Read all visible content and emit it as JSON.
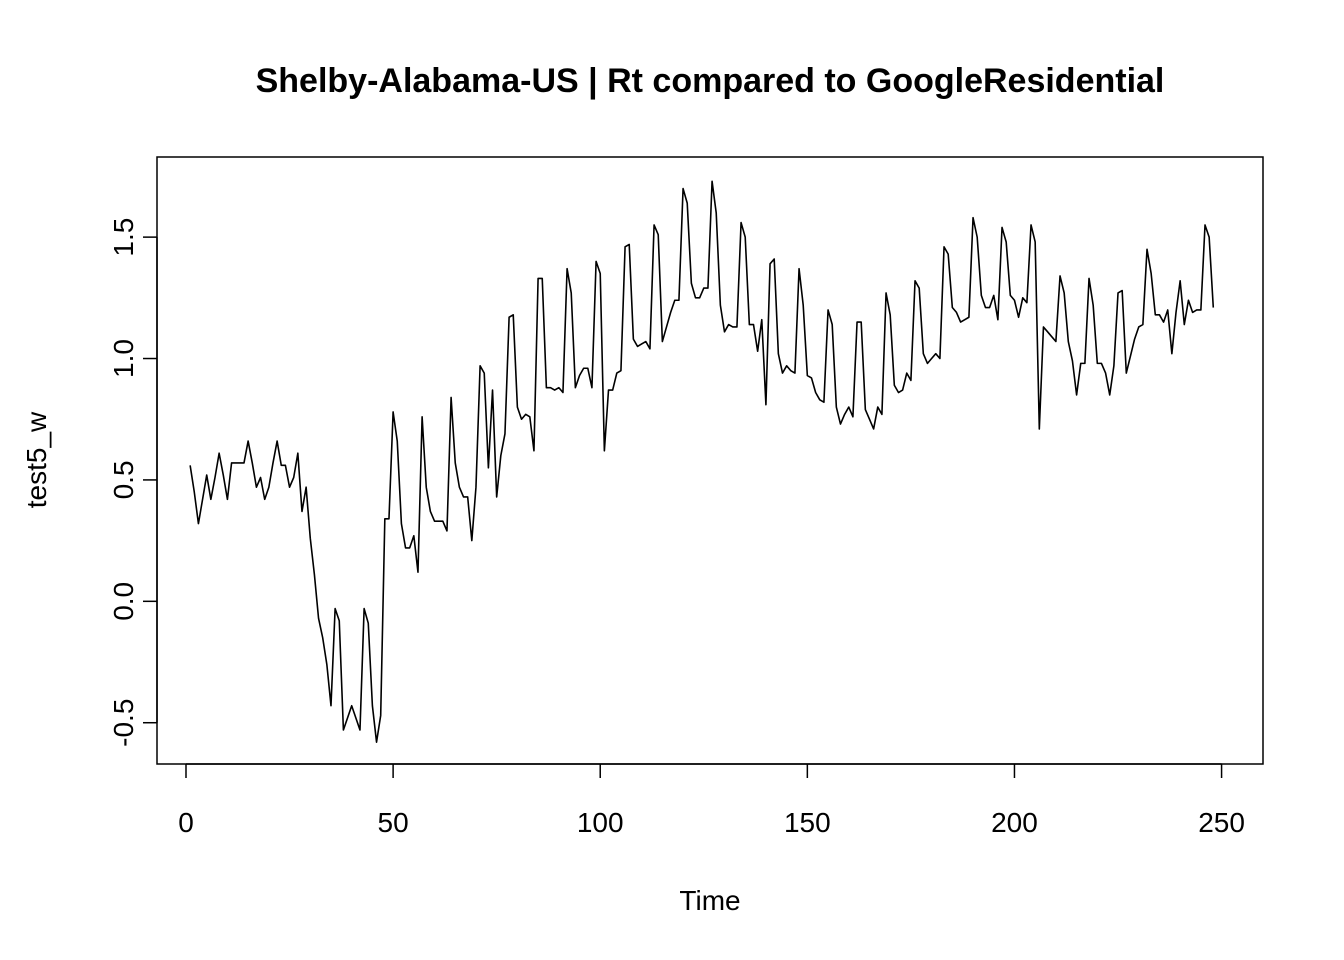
{
  "chart_data": {
    "type": "line",
    "title": "Shelby-Alabama-US | Rt compared to GoogleResidential",
    "xlabel": "Time",
    "ylabel": "test5_w",
    "xlim": [
      -7,
      260
    ],
    "ylim": [
      -0.67,
      1.83
    ],
    "x_ticks": [
      0,
      50,
      100,
      150,
      200,
      250
    ],
    "y_ticks": [
      -0.5,
      0.0,
      0.5,
      1.0,
      1.5
    ],
    "x_tick_labels": [
      "0",
      "50",
      "100",
      "150",
      "200",
      "250"
    ],
    "y_tick_labels": [
      "-0.5",
      "0.0",
      "0.5",
      "1.0",
      "1.5"
    ],
    "grid": false,
    "color": "#000000",
    "series": [
      {
        "x_start": 1,
        "values": [
          0.56,
          0.45,
          0.32,
          0.42,
          0.52,
          0.42,
          0.51,
          0.61,
          0.52,
          0.42,
          0.57,
          0.57,
          0.57,
          0.57,
          0.66,
          0.57,
          0.47,
          0.51,
          0.42,
          0.47,
          0.57,
          0.66,
          0.56,
          0.56,
          0.47,
          0.51,
          0.61,
          0.37,
          0.47,
          0.26,
          0.11,
          -0.07,
          -0.15,
          -0.26,
          -0.43,
          -0.03,
          -0.08,
          -0.53,
          -0.48,
          -0.43,
          -0.48,
          -0.53,
          -0.03,
          -0.09,
          -0.43,
          -0.58,
          -0.47,
          0.34,
          0.34,
          0.78,
          0.66,
          0.32,
          0.22,
          0.22,
          0.27,
          0.12,
          0.76,
          0.47,
          0.37,
          0.33,
          0.33,
          0.33,
          0.29,
          0.84,
          0.57,
          0.47,
          0.43,
          0.43,
          0.25,
          0.47,
          0.97,
          0.94,
          0.55,
          0.87,
          0.43,
          0.6,
          0.69,
          1.17,
          1.18,
          0.8,
          0.75,
          0.77,
          0.76,
          0.62,
          1.33,
          1.33,
          0.88,
          0.88,
          0.87,
          0.88,
          0.86,
          1.37,
          1.27,
          0.88,
          0.93,
          0.96,
          0.96,
          0.88,
          1.4,
          1.35,
          0.62,
          0.87,
          0.87,
          0.94,
          0.95,
          1.46,
          1.47,
          1.08,
          1.05,
          1.06,
          1.07,
          1.04,
          1.55,
          1.51,
          1.07,
          1.13,
          1.19,
          1.24,
          1.24,
          1.7,
          1.64,
          1.31,
          1.25,
          1.25,
          1.29,
          1.29,
          1.73,
          1.6,
          1.22,
          1.11,
          1.14,
          1.13,
          1.13,
          1.56,
          1.5,
          1.14,
          1.14,
          1.03,
          1.16,
          0.81,
          1.39,
          1.41,
          1.02,
          0.94,
          0.97,
          0.95,
          0.94,
          1.37,
          1.22,
          0.93,
          0.92,
          0.86,
          0.83,
          0.82,
          1.2,
          1.14,
          0.8,
          0.73,
          0.77,
          0.8,
          0.76,
          1.15,
          1.15,
          0.79,
          0.75,
          0.71,
          0.8,
          0.77,
          1.27,
          1.18,
          0.89,
          0.86,
          0.87,
          0.94,
          0.91,
          1.32,
          1.29,
          1.02,
          0.98,
          1.0,
          1.02,
          1.0,
          1.46,
          1.43,
          1.21,
          1.19,
          1.15,
          1.16,
          1.17,
          1.58,
          1.5,
          1.26,
          1.21,
          1.21,
          1.26,
          1.16,
          1.54,
          1.48,
          1.26,
          1.24,
          1.17,
          1.25,
          1.23,
          1.55,
          1.48,
          0.71,
          1.13,
          1.11,
          1.09,
          1.07,
          1.34,
          1.27,
          1.07,
          0.99,
          0.85,
          0.98,
          0.98,
          1.33,
          1.22,
          0.98,
          0.98,
          0.94,
          0.85,
          0.97,
          1.27,
          1.28,
          0.94,
          1.01,
          1.08,
          1.13,
          1.14,
          1.45,
          1.35,
          1.18,
          1.18,
          1.15,
          1.2,
          1.02,
          1.19,
          1.32,
          1.14,
          1.24,
          1.19,
          1.2,
          1.2,
          1.55,
          1.5,
          1.21
        ]
      }
    ]
  }
}
